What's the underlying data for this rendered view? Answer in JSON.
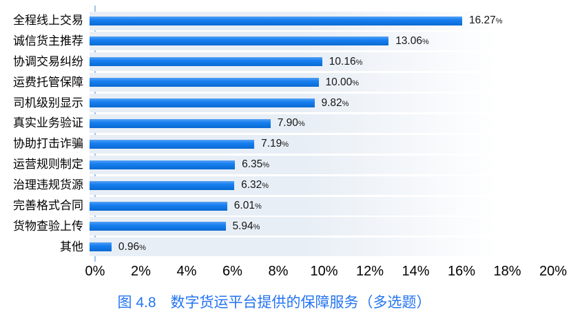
{
  "chart_data": {
    "type": "bar",
    "orientation": "horizontal",
    "title": "图 4.8　数字货运平台提供的保障服务（多选题）",
    "xlabel": "",
    "ylabel": "",
    "categories": [
      "全程线上交易",
      "诚信货主推荐",
      "协调交易纠纷",
      "运费托管保障",
      "司机级别显示",
      "真实业务验证",
      "协助打击诈骗",
      "运营规则制定",
      "治理违规货源",
      "完善格式合同",
      "货物查验上传",
      "其他"
    ],
    "values": [
      16.27,
      13.06,
      10.16,
      10.0,
      9.82,
      7.9,
      7.19,
      6.35,
      6.32,
      6.01,
      5.94,
      0.96
    ],
    "value_labels": [
      "16.27",
      "13.06",
      "10.16",
      "10.00",
      "9.82",
      "7.90",
      "7.19",
      "6.35",
      "6.32",
      "6.01",
      "5.94",
      "0.96"
    ],
    "percent_suffix": "%",
    "xlim": [
      0,
      20
    ],
    "x_ticks": [
      "0%",
      "2%",
      "4%",
      "6%",
      "8%",
      "10%",
      "12%",
      "14%",
      "16%",
      "18%",
      "20%"
    ],
    "grid": false,
    "legend": false,
    "colors": {
      "bar": "#0b78ef",
      "track": "#e8eef5",
      "axis_line": "#9fc3e8",
      "caption": "#2474f0",
      "text": "#000000"
    }
  },
  "caption": {
    "text": "图 4.8　数字货运平台提供的保障服务（多选题）"
  }
}
